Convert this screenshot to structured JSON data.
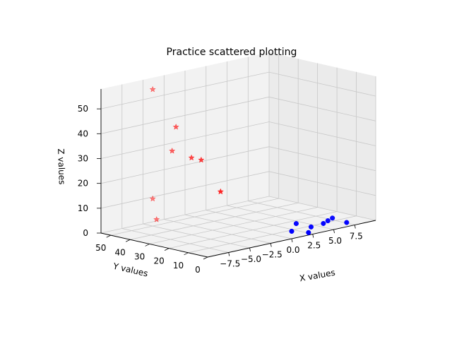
{
  "chart_data": {
    "type": "scatter",
    "projection": "3d",
    "title": "Practice scattered plotting",
    "xlabel": "X values",
    "ylabel": "Y values",
    "zlabel": "Z values",
    "x_ticks": [
      "−7.5",
      "−5.0",
      "−2.5",
      "0.0",
      "2.5",
      "5.0",
      "7.5"
    ],
    "y_ticks": [
      "50",
      "40",
      "30",
      "20",
      "10",
      "0"
    ],
    "z_ticks": [
      "0",
      "10",
      "20",
      "30",
      "40",
      "50"
    ],
    "grid": true,
    "series": [
      {
        "marker": "star",
        "color": "#ff0000",
        "points": [
          {
            "x": -5,
            "y": 50,
            "z": 55
          },
          {
            "x": -5,
            "y": 38,
            "z": 42
          },
          {
            "x": -5,
            "y": 40,
            "z": 32
          },
          {
            "x": -5,
            "y": 30,
            "z": 31
          },
          {
            "x": -5,
            "y": 25,
            "z": 31
          },
          {
            "x": -5,
            "y": 15,
            "z": 20
          },
          {
            "x": -5,
            "y": 50,
            "z": 11
          },
          {
            "x": -5,
            "y": 48,
            "z": 3
          }
        ]
      },
      {
        "marker": "circle",
        "color": "#0000ff",
        "points": [
          {
            "x": 0,
            "y": 0,
            "z": 3
          },
          {
            "x": 1,
            "y": 2,
            "z": 5
          },
          {
            "x": 2,
            "y": 0,
            "z": 1
          },
          {
            "x": 3,
            "y": 3,
            "z": 2
          },
          {
            "x": 4,
            "y": 1,
            "z": 3
          },
          {
            "x": 5,
            "y": 3,
            "z": 3
          },
          {
            "x": 6,
            "y": 5,
            "z": 3
          },
          {
            "x": 7,
            "y": 2,
            "z": 1
          }
        ]
      }
    ]
  }
}
